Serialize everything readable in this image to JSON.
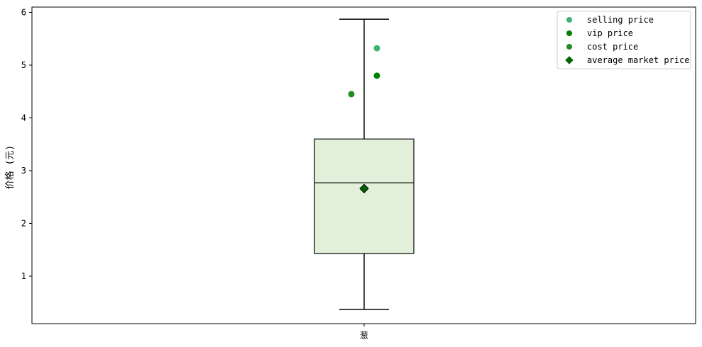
{
  "chart_data": {
    "type": "box",
    "ylabel": "价格 (元)",
    "xlabel": "",
    "categories": [
      "葱"
    ],
    "ylim": [
      0.1,
      6.1
    ],
    "yticks": [
      1,
      2,
      3,
      4,
      5,
      6
    ],
    "grid": false,
    "legend_position": "top-right",
    "box": {
      "whisker_low": 0.37,
      "q1": 1.43,
      "median": 2.77,
      "q3": 3.6,
      "whisker_high": 5.87,
      "mean": 2.66
    },
    "series": [
      {
        "name": "selling price",
        "marker": "circle",
        "color": "#3cb371",
        "x_offset": 0.13,
        "values": [
          5.32
        ]
      },
      {
        "name": "vip price",
        "marker": "circle",
        "color": "#008000",
        "x_offset": 0.13,
        "values": [
          4.8
        ]
      },
      {
        "name": "cost price",
        "marker": "circle",
        "color": "#228b22",
        "x_offset": -0.13,
        "values": [
          4.45
        ]
      },
      {
        "name": "average market price",
        "marker": "diamond",
        "color": "#006400",
        "x_offset": 0,
        "values": [
          2.66
        ]
      }
    ],
    "colors": {
      "box_fill": "#e2efda",
      "box_edge": "#000000"
    }
  }
}
